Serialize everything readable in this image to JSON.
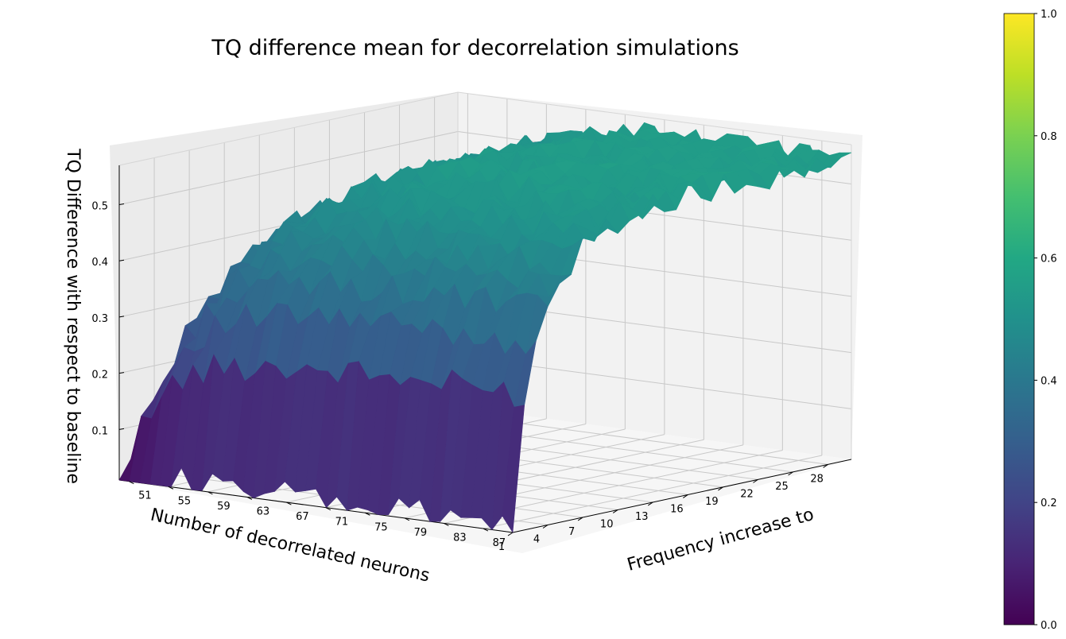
{
  "chart_data": {
    "type": "surface3d",
    "title": "TQ difference mean for decorrelation simulations",
    "xlabel": "Number of decorrelated neurons",
    "ylabel": "Frequency increase to",
    "zlabel": "TQ Difference with respect to baseline",
    "x_ticks": [
      "28",
      "25",
      "22",
      "19",
      "16",
      "13",
      "10",
      "7",
      "4",
      "1"
    ],
    "y_ticks": [
      "51",
      "55",
      "59",
      "63",
      "67",
      "71",
      "75",
      "79",
      "83",
      "87"
    ],
    "z_ticks": [
      "0.1",
      "0.2",
      "0.3",
      "0.4",
      "0.5"
    ],
    "x_range": [
      1,
      30
    ],
    "y_range": [
      50,
      90
    ],
    "z_range": [
      0.01,
      0.57
    ],
    "grid": true,
    "colormap": "viridis",
    "colorbar": {
      "ticks": [
        "0.0",
        "0.2",
        "0.4",
        "0.6",
        "0.8",
        "1.0"
      ],
      "range": [
        0,
        1
      ]
    },
    "surface_profile": {
      "x_corner": 1,
      "y_corner": 50,
      "peak_z": 0.55,
      "near_corner_z": 0.02,
      "far_corner_z": 0.5
    }
  }
}
